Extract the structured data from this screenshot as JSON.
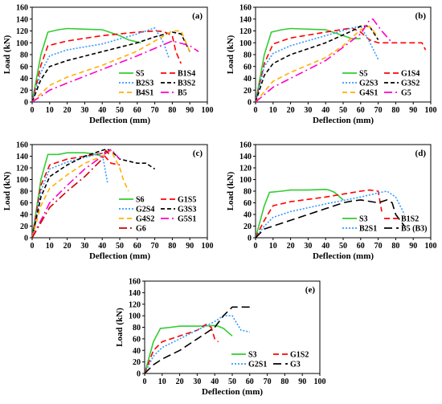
{
  "figure": {
    "x_axis_label": "Deflection (mm)",
    "y_axis_label": "Load (kN)",
    "x_ticks": [
      0,
      10,
      20,
      30,
      40,
      50,
      60,
      70,
      80,
      90,
      100
    ],
    "y_ticks": [
      0,
      20,
      40,
      60,
      80,
      100,
      120,
      140,
      160
    ]
  },
  "chart_data": [
    {
      "panel": "(a)",
      "type": "line",
      "xlim": [
        0,
        100
      ],
      "ylim": [
        0,
        160
      ],
      "xlabel": "Deflection (mm)",
      "ylabel": "Load (kN)",
      "series": [
        {
          "name": "S5",
          "color": "#33cc33",
          "dash": "",
          "x": [
            0,
            5,
            9,
            15,
            20,
            30,
            40,
            50,
            55,
            62
          ],
          "y": [
            0,
            80,
            118,
            122,
            124,
            123,
            122,
            112,
            105,
            100
          ]
        },
        {
          "name": "B1S4",
          "color": "#ff0000",
          "dash": "7,4",
          "x": [
            0,
            5,
            9,
            20,
            40,
            60,
            70,
            75,
            80,
            82,
            85
          ],
          "y": [
            0,
            62,
            95,
            103,
            112,
            118,
            120,
            119,
            112,
            85,
            65
          ]
        },
        {
          "name": "B2S3",
          "color": "#3399ff",
          "dash": "2,2",
          "x": [
            0,
            5,
            10,
            20,
            40,
            60,
            70,
            75,
            78
          ],
          "y": [
            0,
            50,
            78,
            88,
            98,
            115,
            125,
            100,
            75
          ]
        },
        {
          "name": "B3S2",
          "color": "#000000",
          "dash": "5,3",
          "x": [
            0,
            5,
            10,
            20,
            40,
            60,
            70,
            80,
            85,
            90
          ],
          "y": [
            0,
            38,
            60,
            70,
            85,
            100,
            110,
            118,
            115,
            85
          ]
        },
        {
          "name": "B4S1",
          "color": "#ffb000",
          "dash": "6,4",
          "x": [
            0,
            10,
            20,
            40,
            60,
            80,
            85,
            90
          ],
          "y": [
            0,
            28,
            42,
            62,
            86,
            120,
            120,
            85
          ]
        },
        {
          "name": "B5",
          "color": "#ff00cc",
          "dash": "10,4,2,4",
          "x": [
            0,
            10,
            20,
            40,
            60,
            80,
            90,
            95
          ],
          "y": [
            0,
            20,
            32,
            55,
            78,
            103,
            95,
            85
          ]
        }
      ]
    },
    {
      "panel": "(b)",
      "type": "line",
      "xlim": [
        0,
        100
      ],
      "ylim": [
        0,
        160
      ],
      "xlabel": "Deflection (mm)",
      "ylabel": "Load (kN)",
      "series": [
        {
          "name": "S5",
          "color": "#33cc33",
          "dash": "",
          "x": [
            0,
            5,
            9,
            15,
            20,
            30,
            40,
            50,
            55,
            60
          ],
          "y": [
            0,
            80,
            118,
            122,
            124,
            123,
            122,
            112,
            107,
            107
          ]
        },
        {
          "name": "G1S4",
          "color": "#ff0000",
          "dash": "7,4",
          "x": [
            0,
            5,
            10,
            20,
            40,
            55,
            60,
            65,
            70,
            80,
            90,
            95,
            97
          ],
          "y": [
            0,
            65,
            98,
            108,
            118,
            125,
            118,
            105,
            100,
            100,
            100,
            100,
            88
          ]
        },
        {
          "name": "G2S3",
          "color": "#3399ff",
          "dash": "2,2",
          "x": [
            0,
            5,
            10,
            20,
            40,
            55,
            60,
            65,
            70
          ],
          "y": [
            0,
            60,
            82,
            95,
            112,
            125,
            128,
            102,
            72
          ]
        },
        {
          "name": "G3S2",
          "color": "#000000",
          "dash": "5,3",
          "x": [
            0,
            5,
            10,
            20,
            40,
            55,
            60,
            65,
            70
          ],
          "y": [
            0,
            45,
            65,
            80,
            100,
            120,
            128,
            128,
            105
          ]
        },
        {
          "name": "G4S1",
          "color": "#ffb000",
          "dash": "6,4",
          "x": [
            0,
            10,
            20,
            40,
            50,
            60,
            65,
            70
          ],
          "y": [
            0,
            35,
            50,
            75,
            95,
            122,
            128,
            110
          ]
        },
        {
          "name": "G5",
          "color": "#ff00cc",
          "dash": "10,4,2,4",
          "x": [
            0,
            10,
            20,
            40,
            60,
            65,
            67,
            72,
            78
          ],
          "y": [
            0,
            25,
            40,
            70,
            115,
            138,
            140,
            120,
            100
          ]
        }
      ]
    },
    {
      "panel": "(c)",
      "type": "line",
      "xlim": [
        0,
        100
      ],
      "ylim": [
        0,
        160
      ],
      "xlabel": "Deflection (mm)",
      "ylabel": "Load (kN)",
      "series": [
        {
          "name": "S6",
          "color": "#33cc33",
          "dash": "",
          "x": [
            0,
            5,
            9,
            15,
            20,
            30,
            35,
            40
          ],
          "y": [
            0,
            100,
            143,
            143,
            146,
            146,
            144,
            140
          ]
        },
        {
          "name": "G1S5",
          "color": "#ff0000",
          "dash": "7,4",
          "x": [
            0,
            5,
            10,
            20,
            30,
            40,
            45,
            50
          ],
          "y": [
            0,
            90,
            125,
            135,
            140,
            145,
            128,
            125
          ]
        },
        {
          "name": "G2S4",
          "color": "#3399ff",
          "dash": "2,2",
          "x": [
            0,
            5,
            10,
            20,
            30,
            40,
            43
          ],
          "y": [
            0,
            80,
            118,
            130,
            138,
            145,
            95
          ]
        },
        {
          "name": "G3S3",
          "color": "#000000",
          "dash": "5,3",
          "x": [
            0,
            5,
            10,
            20,
            30,
            40,
            42,
            45,
            50,
            60,
            65,
            70
          ],
          "y": [
            0,
            70,
            105,
            125,
            140,
            150,
            152,
            150,
            135,
            128,
            128,
            118
          ]
        },
        {
          "name": "G4S2",
          "color": "#ffb000",
          "dash": "6,4",
          "x": [
            0,
            5,
            10,
            20,
            30,
            40,
            45,
            50,
            52,
            55
          ],
          "y": [
            0,
            55,
            85,
            108,
            128,
            140,
            150,
            120,
            100,
            80
          ]
        },
        {
          "name": "G5S1",
          "color": "#ff00cc",
          "dash": "10,4,2,4",
          "x": [
            0,
            10,
            20,
            30,
            40,
            45,
            50
          ],
          "y": [
            0,
            60,
            90,
            118,
            140,
            152,
            135
          ]
        },
        {
          "name": "G6",
          "color": "#cc0000",
          "dash": "10,4,2,4",
          "x": [
            0,
            10,
            20,
            30,
            40,
            42,
            45
          ],
          "y": [
            0,
            52,
            80,
            105,
            135,
            150,
            140
          ]
        }
      ]
    },
    {
      "panel": "(d)",
      "type": "line",
      "xlim": [
        0,
        100
      ],
      "ylim": [
        0,
        160
      ],
      "xlabel": "Deflection (mm)",
      "ylabel": "Load (kN)",
      "series": [
        {
          "name": "S3",
          "color": "#33cc33",
          "dash": "",
          "x": [
            0,
            5,
            8,
            15,
            20,
            30,
            40,
            42,
            45,
            50
          ],
          "y": [
            0,
            55,
            78,
            80,
            82,
            82,
            83,
            82,
            78,
            65
          ]
        },
        {
          "name": "B1S2",
          "color": "#ff0000",
          "dash": "7,4",
          "x": [
            0,
            5,
            10,
            20,
            40,
            60,
            65,
            70,
            72
          ],
          "y": [
            0,
            30,
            55,
            62,
            70,
            80,
            82,
            80,
            45
          ]
        },
        {
          "name": "B2S1",
          "color": "#3399ff",
          "dash": "2,2",
          "x": [
            0,
            5,
            10,
            20,
            40,
            60,
            70,
            75,
            80,
            85
          ],
          "y": [
            0,
            20,
            35,
            45,
            58,
            70,
            77,
            80,
            70,
            40
          ]
        },
        {
          "name": "B5 (B3)",
          "color": "#000000",
          "dash": "10,5",
          "x": [
            0,
            5,
            10,
            20,
            30,
            40,
            50,
            55,
            60,
            70,
            75,
            78,
            80,
            85
          ],
          "y": [
            0,
            15,
            20,
            30,
            40,
            50,
            60,
            63,
            65,
            60,
            65,
            60,
            40,
            20
          ]
        }
      ]
    },
    {
      "panel": "(e)",
      "type": "line",
      "xlim": [
        0,
        100
      ],
      "ylim": [
        0,
        160
      ],
      "xlabel": "Deflection (mm)",
      "ylabel": "Load (kN)",
      "series": [
        {
          "name": "S3",
          "color": "#33cc33",
          "dash": "",
          "x": [
            0,
            5,
            9,
            15,
            20,
            30,
            40,
            42,
            45,
            50
          ],
          "y": [
            0,
            55,
            78,
            80,
            82,
            82,
            83,
            82,
            78,
            65
          ]
        },
        {
          "name": "G1S2",
          "color": "#ff0000",
          "dash": "7,4",
          "x": [
            0,
            5,
            10,
            20,
            30,
            35,
            38,
            40,
            42
          ],
          "y": [
            0,
            40,
            55,
            65,
            75,
            85,
            80,
            60,
            55
          ]
        },
        {
          "name": "G2S1",
          "color": "#3399ff",
          "dash": "2,2",
          "x": [
            0,
            5,
            10,
            20,
            30,
            40,
            45,
            50,
            55,
            60
          ],
          "y": [
            0,
            30,
            45,
            60,
            75,
            90,
            100,
            100,
            75,
            72
          ]
        },
        {
          "name": "G3",
          "color": "#000000",
          "dash": "10,5",
          "x": [
            0,
            5,
            10,
            20,
            30,
            40,
            45,
            50,
            55,
            60
          ],
          "y": [
            0,
            15,
            25,
            40,
            60,
            80,
            100,
            115,
            115,
            115
          ]
        }
      ]
    }
  ]
}
